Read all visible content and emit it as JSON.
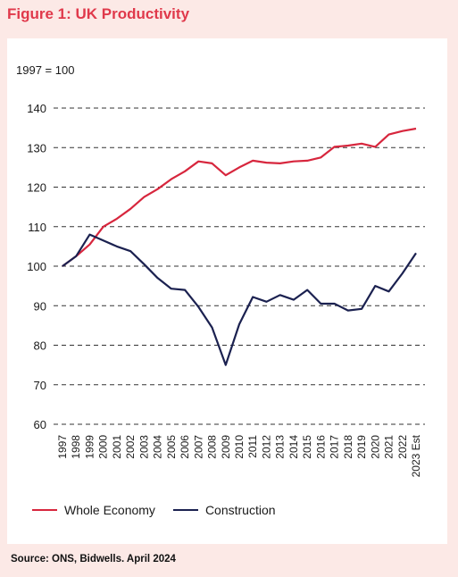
{
  "figure": {
    "title": "Figure 1: UK Productivity",
    "source": "Source: ONS, Bidwells. April 2024"
  },
  "colors": {
    "title": "#e0394b",
    "whole_economy": "#d7263d",
    "construction": "#1b2150",
    "grid": "#333333",
    "background": "#fce9e6",
    "panel": "#ffffff"
  },
  "chart_data": {
    "type": "line",
    "index_label": "1997 = 100",
    "categories": [
      "1997",
      "1998",
      "1999",
      "2000",
      "2001",
      "2002",
      "2003",
      "2004",
      "2005",
      "2006",
      "2007",
      "2008",
      "2009",
      "2010",
      "2011",
      "2012",
      "2013",
      "2014",
      "2015",
      "2016",
      "2017",
      "2018",
      "2019",
      "2020",
      "2021",
      "2022",
      "2023 Est"
    ],
    "ylim": [
      60,
      140
    ],
    "yticks": [
      60,
      70,
      80,
      90,
      100,
      110,
      120,
      130,
      140
    ],
    "grid": "horizontal dashed",
    "legend_position": "bottom-left",
    "series": [
      {
        "name": "Whole Economy",
        "color": "#d7263d",
        "values": [
          100,
          102.5,
          105.5,
          110,
          112,
          114.5,
          117.5,
          119.5,
          122,
          124,
          126.5,
          126,
          123,
          125,
          126.7,
          126.2,
          126,
          126.5,
          126.7,
          127.5,
          130.2,
          130.5,
          131,
          130.2,
          133.3,
          134.2,
          134.8
        ]
      },
      {
        "name": "Construction",
        "color": "#1b2150",
        "values": [
          100,
          102.5,
          108,
          106.5,
          105,
          103.8,
          100.5,
          97,
          94.3,
          94,
          89.7,
          84.5,
          75,
          85.3,
          92.2,
          91,
          92.7,
          91.5,
          94,
          90.5,
          90.5,
          88.8,
          89.2,
          95,
          93.6,
          98.2,
          103.3
        ]
      }
    ]
  }
}
